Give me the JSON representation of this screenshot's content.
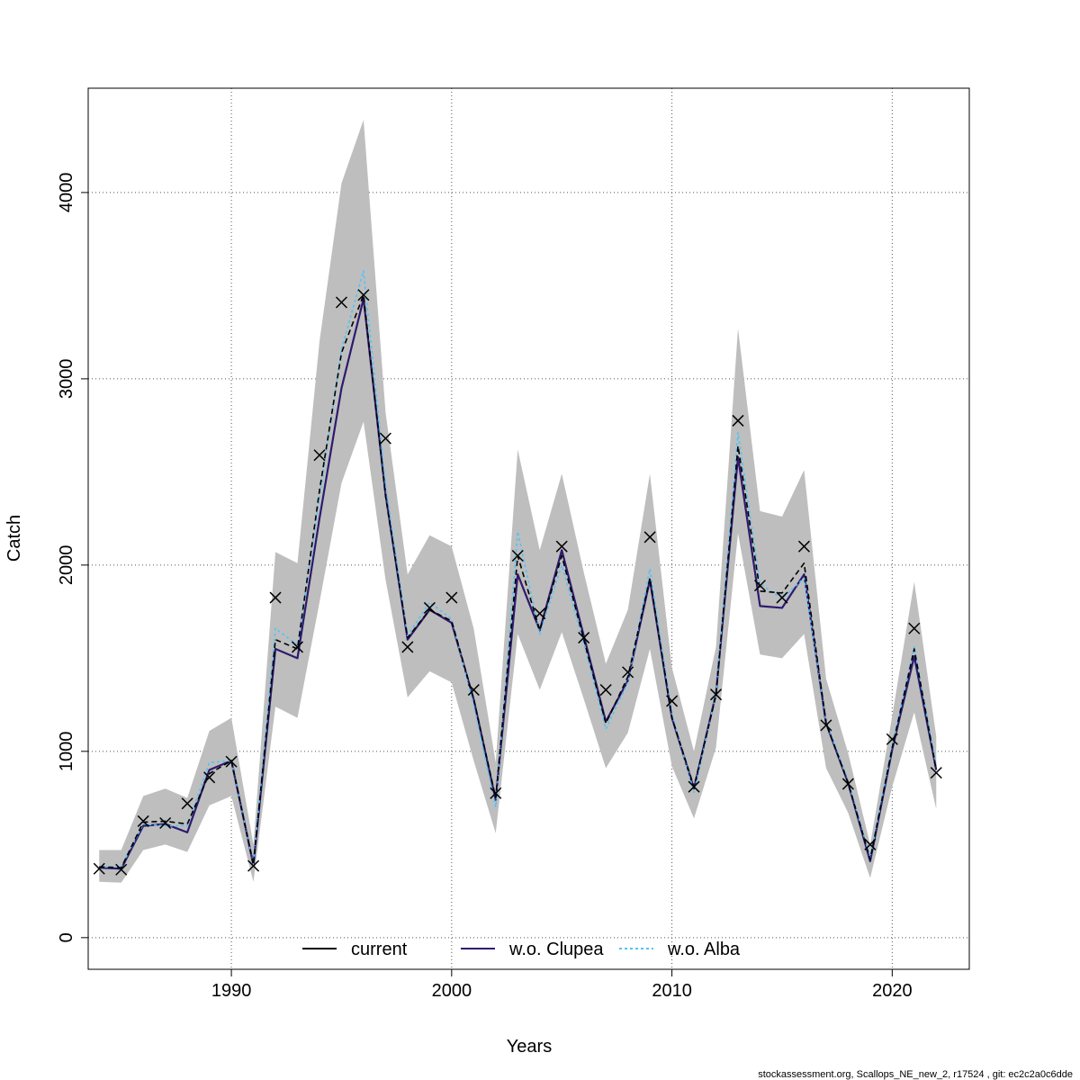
{
  "chart_data": {
    "type": "line",
    "xlabel": "Years",
    "ylabel": "Catch",
    "xlim": [
      1983.5,
      2023.5
    ],
    "ylim": [
      -170,
      4560
    ],
    "x_ticks": [
      1990,
      2000,
      2010,
      2020
    ],
    "y_ticks": [
      0,
      1000,
      2000,
      3000,
      4000
    ],
    "grid": true,
    "legend_position": "bottom-center",
    "x": [
      1984,
      1985,
      1986,
      1987,
      1988,
      1989,
      1990,
      1991,
      1992,
      1993,
      1994,
      1995,
      1996,
      1997,
      1998,
      1999,
      2000,
      2001,
      2002,
      2003,
      2004,
      2005,
      2006,
      2007,
      2008,
      2009,
      2010,
      2011,
      2012,
      2013,
      2014,
      2015,
      2016,
      2017,
      2018,
      2019,
      2020,
      2021,
      2022
    ],
    "confidence_band": {
      "color": "#bebebe",
      "lower": [
        300,
        295,
        470,
        500,
        460,
        710,
        760,
        300,
        1240,
        1180,
        1800,
        2440,
        2770,
        1920,
        1290,
        1430,
        1370,
        950,
        560,
        1630,
        1330,
        1640,
        1280,
        910,
        1100,
        1550,
        920,
        640,
        1020,
        2170,
        1520,
        1500,
        1630,
        910,
        670,
        320,
        810,
        1210,
        690
      ],
      "upper": [
        470,
        470,
        760,
        800,
        750,
        1110,
        1180,
        500,
        2070,
        2010,
        3200,
        4050,
        4390,
        2820,
        1950,
        2160,
        2100,
        1660,
        940,
        2620,
        2080,
        2490,
        1960,
        1470,
        1760,
        2490,
        1450,
        1000,
        1560,
        3270,
        2290,
        2260,
        2510,
        1390,
        990,
        500,
        1190,
        1910,
        1080
      ]
    },
    "series": [
      {
        "name": "current",
        "color": "#000000",
        "dash": "6,4",
        "values": [
          380,
          375,
          620,
          625,
          610,
          880,
          950,
          390,
          1600,
          1550,
          2400,
          3140,
          3450,
          2370,
          1610,
          1760,
          1700,
          1280,
          750,
          2050,
          1650,
          2050,
          1600,
          1150,
          1400,
          1930,
          1180,
          810,
          1300,
          2640,
          1860,
          1850,
          2010,
          1150,
          830,
          420,
          1020,
          1550,
          900
        ]
      },
      {
        "name": "w.o. Clupea",
        "color": "#2e1a6e",
        "dash": "none",
        "values": [
          375,
          370,
          600,
          610,
          565,
          900,
          950,
          390,
          1550,
          1500,
          2250,
          2950,
          3430,
          2380,
          1600,
          1760,
          1690,
          1280,
          740,
          1950,
          1650,
          2080,
          1620,
          1160,
          1380,
          1920,
          1180,
          800,
          1310,
          2580,
          1780,
          1770,
          1950,
          1150,
          830,
          410,
          1010,
          1510,
          900
        ]
      },
      {
        "name": "w.o. Alba",
        "color": "#4fc3f7",
        "dash": "3,3",
        "values": [
          380,
          380,
          610,
          600,
          600,
          940,
          950,
          390,
          1660,
          1570,
          2360,
          3160,
          3580,
          2430,
          1620,
          1800,
          1710,
          1250,
          700,
          2180,
          1630,
          2000,
          1580,
          1120,
          1370,
          1980,
          1200,
          780,
          1310,
          2710,
          1900,
          1820,
          1930,
          1160,
          840,
          430,
          1030,
          1560,
          920
        ]
      }
    ],
    "observed": {
      "name": "observed",
      "marker": "x",
      "values": [
        370,
        365,
        625,
        615,
        720,
        860,
        945,
        385,
        1825,
        1560,
        2590,
        3410,
        3450,
        2680,
        1560,
        1770,
        1825,
        1330,
        775,
        2050,
        1740,
        2100,
        1610,
        1330,
        1425,
        2150,
        1270,
        810,
        1305,
        2775,
        1890,
        1825,
        2100,
        1140,
        825,
        500,
        1065,
        1660,
        885
      ]
    },
    "legend": [
      "current",
      "w.o. Clupea",
      "w.o. Alba"
    ],
    "footer": "stockassessment.org, Scallops_NE_new_2, r17524 , git: ec2c2a0c6dde"
  }
}
